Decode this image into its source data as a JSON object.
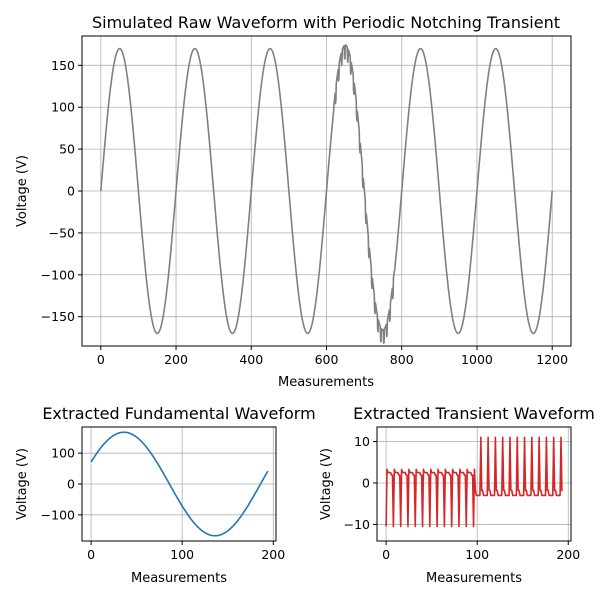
{
  "chart_data": [
    {
      "type": "line",
      "title": "Simulated Raw Waveform with Periodic Notching Transient",
      "xlabel": "Measurements",
      "ylabel": "Voltage (V)",
      "xlim": [
        -50,
        1250
      ],
      "ylim": [
        -185,
        185
      ],
      "xticks": [
        0,
        200,
        400,
        600,
        800,
        1000,
        1200
      ],
      "yticks": [
        -150,
        -100,
        -50,
        0,
        50,
        100,
        150
      ],
      "grid": true,
      "series": [
        {
          "color": "#808080",
          "x_range": [
            0,
            1200
          ],
          "points": 1200,
          "amplitude": 170,
          "period": 200,
          "notch_region": [
            620,
            780
          ],
          "notch_amplitude": 12
        }
      ]
    },
    {
      "type": "line",
      "title": "Extracted Fundamental Waveform",
      "xlabel": "Measurements",
      "ylabel": "Voltage (V)",
      "xlim": [
        -10,
        203
      ],
      "ylim": [
        -185,
        185
      ],
      "xticks": [
        0,
        100,
        200
      ],
      "yticks": [
        -100,
        0,
        100
      ],
      "grid": true,
      "series": [
        {
          "color": "#1f77b4",
          "x_range": [
            0,
            194
          ],
          "points": 194,
          "amplitude": 168,
          "period": 200,
          "phase_offset": 14
        }
      ]
    },
    {
      "type": "line",
      "title": "Extracted Transient Waveform",
      "xlabel": "Measurements",
      "ylabel": "Voltage (V)",
      "xlim": [
        -10,
        203
      ],
      "ylim": [
        -14,
        13.5
      ],
      "xticks": [
        0,
        100,
        200
      ],
      "yticks": [
        -10,
        0,
        10
      ],
      "grid": true,
      "series": [
        {
          "color": "#d62728",
          "x_range": [
            0,
            194
          ],
          "points": 194,
          "notch_period": 8,
          "first_half": {
            "end": 98,
            "base": 2.5,
            "notch": -10.5
          },
          "second_half": {
            "start": 98,
            "base": -3,
            "spike": 11
          }
        }
      ]
    }
  ]
}
